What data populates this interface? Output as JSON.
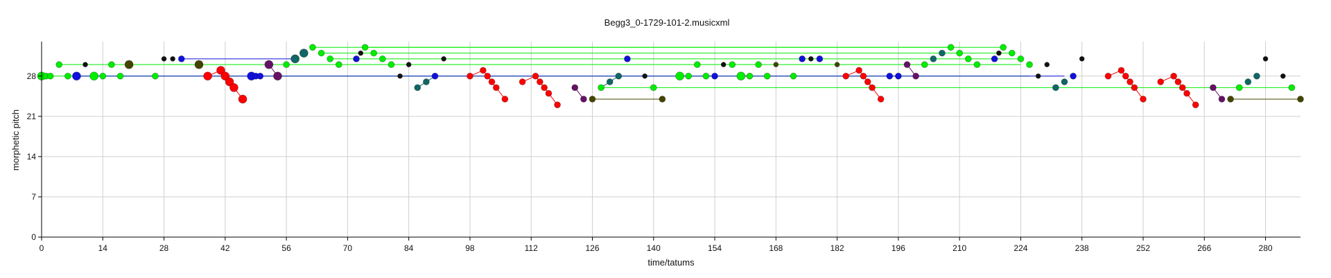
{
  "chart_data": {
    "type": "scatter",
    "title": "Begg3_0-1729-101-2.musicxml",
    "xlabel": "time/tatums",
    "ylabel": "morphetic pitch",
    "xlim": [
      0,
      288
    ],
    "ylim": [
      0,
      34
    ],
    "xticks": [
      0,
      14,
      28,
      42,
      56,
      70,
      84,
      98,
      112,
      126,
      140,
      154,
      168,
      182,
      196,
      210,
      224,
      238,
      252,
      266,
      280
    ],
    "yticks": [
      0,
      7,
      14,
      21,
      28
    ],
    "grid": true,
    "colors": {
      "red": "#ff0000",
      "green": "#00ee00",
      "blue": "#1010dd",
      "black": "#111111",
      "teal": "#116666",
      "purple": "#661166",
      "olive": "#444400"
    },
    "links": [
      {
        "color": "green",
        "points": [
          [
            0,
            28
          ],
          [
            14,
            28
          ],
          [
            26,
            28
          ],
          [
            40,
            28
          ],
          [
            56,
            28
          ],
          [
            72,
            28
          ],
          [
            96,
            28
          ],
          [
            146,
            28
          ],
          [
            160,
            28
          ],
          [
            172,
            28
          ],
          [
            196,
            28
          ],
          [
            226,
            28
          ]
        ]
      },
      {
        "color": "green",
        "points": [
          [
            4,
            30
          ],
          [
            36,
            30
          ],
          [
            100,
            30
          ],
          [
            160,
            30
          ],
          [
            224,
            30
          ]
        ]
      },
      {
        "color": "green",
        "points": [
          [
            62,
            33
          ],
          [
            208,
            33
          ]
        ]
      },
      {
        "color": "green",
        "points": [
          [
            74,
            33
          ],
          [
            220,
            33
          ]
        ]
      },
      {
        "color": "green",
        "points": [
          [
            64,
            32
          ],
          [
            210,
            32
          ],
          [
            222,
            32
          ]
        ]
      },
      {
        "color": "green",
        "points": [
          [
            66,
            31
          ],
          [
            212,
            31
          ],
          [
            224,
            31
          ]
        ]
      },
      {
        "color": "green",
        "points": [
          [
            128,
            26
          ],
          [
            286,
            26
          ]
        ]
      },
      {
        "color": "blue",
        "points": [
          [
            32,
            31
          ],
          [
            58,
            31
          ]
        ]
      },
      {
        "color": "blue",
        "points": [
          [
            8,
            28
          ],
          [
            50,
            28
          ],
          [
            174,
            28
          ],
          [
            234,
            28
          ]
        ]
      },
      {
        "color": "olive",
        "points": [
          [
            126,
            24
          ],
          [
            142,
            24
          ]
        ]
      },
      {
        "color": "olive",
        "points": [
          [
            272,
            24
          ],
          [
            288,
            24
          ]
        ]
      },
      {
        "color": "red",
        "points": [
          [
            38,
            28
          ],
          [
            41,
            29
          ],
          [
            42,
            28
          ],
          [
            43,
            27
          ],
          [
            44,
            26
          ],
          [
            46,
            24
          ]
        ]
      },
      {
        "color": "red",
        "points": [
          [
            98,
            28
          ],
          [
            101,
            29
          ],
          [
            102,
            28
          ],
          [
            103,
            27
          ],
          [
            104,
            26
          ],
          [
            106,
            24
          ]
        ]
      },
      {
        "color": "red",
        "points": [
          [
            110,
            27
          ],
          [
            113,
            28
          ],
          [
            114,
            27
          ],
          [
            115,
            26
          ],
          [
            116,
            25
          ],
          [
            118,
            23
          ]
        ]
      },
      {
        "color": "red",
        "points": [
          [
            184,
            28
          ],
          [
            187,
            29
          ],
          [
            188,
            28
          ],
          [
            189,
            27
          ],
          [
            190,
            26
          ],
          [
            192,
            24
          ]
        ]
      },
      {
        "color": "red",
        "points": [
          [
            244,
            28
          ],
          [
            247,
            29
          ],
          [
            248,
            28
          ],
          [
            249,
            27
          ],
          [
            250,
            26
          ],
          [
            252,
            24
          ]
        ]
      },
      {
        "color": "red",
        "points": [
          [
            256,
            27
          ],
          [
            259,
            28
          ],
          [
            260,
            27
          ],
          [
            261,
            26
          ],
          [
            262,
            25
          ],
          [
            264,
            23
          ]
        ]
      },
      {
        "color": "purple",
        "points": [
          [
            52,
            30
          ],
          [
            54,
            28
          ]
        ]
      },
      {
        "color": "purple",
        "points": [
          [
            122,
            26
          ],
          [
            124,
            24
          ]
        ]
      },
      {
        "color": "purple",
        "points": [
          [
            268,
            26
          ],
          [
            270,
            24
          ]
        ]
      },
      {
        "color": "purple",
        "points": [
          [
            198,
            30
          ],
          [
            200,
            28
          ]
        ]
      },
      {
        "color": "teal",
        "points": [
          [
            128,
            26
          ],
          [
            130,
            27
          ],
          [
            132,
            28
          ]
        ]
      },
      {
        "color": "teal",
        "points": [
          [
            86,
            26
          ],
          [
            88,
            27
          ],
          [
            90,
            28
          ]
        ]
      }
    ],
    "points": [
      {
        "x": 0,
        "y": 28,
        "c": "green",
        "s": "l"
      },
      {
        "x": 1,
        "y": 28,
        "c": "green",
        "s": "m"
      },
      {
        "x": 2,
        "y": 28,
        "c": "green",
        "s": "m"
      },
      {
        "x": 4,
        "y": 30,
        "c": "green",
        "s": "m"
      },
      {
        "x": 6,
        "y": 28,
        "c": "green",
        "s": "m"
      },
      {
        "x": 8,
        "y": 28,
        "c": "blue",
        "s": "l"
      },
      {
        "x": 10,
        "y": 30,
        "c": "black",
        "s": "s"
      },
      {
        "x": 12,
        "y": 28,
        "c": "green",
        "s": "l"
      },
      {
        "x": 14,
        "y": 28,
        "c": "green",
        "s": "m"
      },
      {
        "x": 16,
        "y": 30,
        "c": "green",
        "s": "m"
      },
      {
        "x": 18,
        "y": 28,
        "c": "green",
        "s": "m"
      },
      {
        "x": 20,
        "y": 30,
        "c": "olive",
        "s": "l"
      },
      {
        "x": 26,
        "y": 28,
        "c": "green",
        "s": "m"
      },
      {
        "x": 28,
        "y": 31,
        "c": "black",
        "s": "s"
      },
      {
        "x": 30,
        "y": 31,
        "c": "black",
        "s": "s"
      },
      {
        "x": 32,
        "y": 31,
        "c": "blue",
        "s": "m"
      },
      {
        "x": 36,
        "y": 30,
        "c": "olive",
        "s": "l"
      },
      {
        "x": 38,
        "y": 28,
        "c": "red",
        "s": "l"
      },
      {
        "x": 41,
        "y": 29,
        "c": "red",
        "s": "l"
      },
      {
        "x": 42,
        "y": 28,
        "c": "red",
        "s": "l"
      },
      {
        "x": 43,
        "y": 27,
        "c": "red",
        "s": "l"
      },
      {
        "x": 44,
        "y": 26,
        "c": "red",
        "s": "l"
      },
      {
        "x": 46,
        "y": 24,
        "c": "red",
        "s": "l"
      },
      {
        "x": 48,
        "y": 28,
        "c": "blue",
        "s": "l"
      },
      {
        "x": 49,
        "y": 28,
        "c": "blue",
        "s": "m"
      },
      {
        "x": 50,
        "y": 28,
        "c": "blue",
        "s": "m"
      },
      {
        "x": 52,
        "y": 30,
        "c": "purple",
        "s": "l"
      },
      {
        "x": 54,
        "y": 28,
        "c": "purple",
        "s": "l"
      },
      {
        "x": 56,
        "y": 30,
        "c": "green",
        "s": "m"
      },
      {
        "x": 58,
        "y": 31,
        "c": "teal",
        "s": "l"
      },
      {
        "x": 60,
        "y": 32,
        "c": "teal",
        "s": "l"
      },
      {
        "x": 62,
        "y": 33,
        "c": "green",
        "s": "m"
      },
      {
        "x": 64,
        "y": 32,
        "c": "green",
        "s": "m"
      },
      {
        "x": 66,
        "y": 31,
        "c": "green",
        "s": "m"
      },
      {
        "x": 68,
        "y": 30,
        "c": "green",
        "s": "m"
      },
      {
        "x": 72,
        "y": 31,
        "c": "blue",
        "s": "m"
      },
      {
        "x": 73,
        "y": 32,
        "c": "black",
        "s": "s"
      },
      {
        "x": 74,
        "y": 33,
        "c": "green",
        "s": "m"
      },
      {
        "x": 76,
        "y": 32,
        "c": "green",
        "s": "m"
      },
      {
        "x": 78,
        "y": 31,
        "c": "green",
        "s": "m"
      },
      {
        "x": 80,
        "y": 30,
        "c": "green",
        "s": "m"
      },
      {
        "x": 82,
        "y": 28,
        "c": "black",
        "s": "s"
      },
      {
        "x": 84,
        "y": 30,
        "c": "black",
        "s": "s"
      },
      {
        "x": 86,
        "y": 26,
        "c": "teal",
        "s": "m"
      },
      {
        "x": 88,
        "y": 27,
        "c": "teal",
        "s": "m"
      },
      {
        "x": 90,
        "y": 28,
        "c": "blue",
        "s": "m"
      },
      {
        "x": 92,
        "y": 31,
        "c": "black",
        "s": "s"
      },
      {
        "x": 98,
        "y": 28,
        "c": "red",
        "s": "m"
      },
      {
        "x": 101,
        "y": 29,
        "c": "red",
        "s": "m"
      },
      {
        "x": 102,
        "y": 28,
        "c": "red",
        "s": "m"
      },
      {
        "x": 103,
        "y": 27,
        "c": "red",
        "s": "m"
      },
      {
        "x": 104,
        "y": 26,
        "c": "red",
        "s": "m"
      },
      {
        "x": 106,
        "y": 24,
        "c": "red",
        "s": "m"
      },
      {
        "x": 110,
        "y": 27,
        "c": "red",
        "s": "m"
      },
      {
        "x": 113,
        "y": 28,
        "c": "red",
        "s": "m"
      },
      {
        "x": 114,
        "y": 27,
        "c": "red",
        "s": "m"
      },
      {
        "x": 115,
        "y": 26,
        "c": "red",
        "s": "m"
      },
      {
        "x": 116,
        "y": 25,
        "c": "red",
        "s": "m"
      },
      {
        "x": 118,
        "y": 23,
        "c": "red",
        "s": "m"
      },
      {
        "x": 122,
        "y": 26,
        "c": "purple",
        "s": "m"
      },
      {
        "x": 124,
        "y": 24,
        "c": "purple",
        "s": "m"
      },
      {
        "x": 126,
        "y": 24,
        "c": "olive",
        "s": "m"
      },
      {
        "x": 128,
        "y": 26,
        "c": "green",
        "s": "m"
      },
      {
        "x": 130,
        "y": 27,
        "c": "teal",
        "s": "m"
      },
      {
        "x": 132,
        "y": 28,
        "c": "teal",
        "s": "m"
      },
      {
        "x": 134,
        "y": 31,
        "c": "blue",
        "s": "m"
      },
      {
        "x": 138,
        "y": 28,
        "c": "black",
        "s": "s"
      },
      {
        "x": 140,
        "y": 26,
        "c": "green",
        "s": "m"
      },
      {
        "x": 142,
        "y": 24,
        "c": "olive",
        "s": "m"
      },
      {
        "x": 146,
        "y": 28,
        "c": "green",
        "s": "l"
      },
      {
        "x": 148,
        "y": 28,
        "c": "green",
        "s": "m"
      },
      {
        "x": 150,
        "y": 30,
        "c": "green",
        "s": "m"
      },
      {
        "x": 152,
        "y": 28,
        "c": "green",
        "s": "m"
      },
      {
        "x": 154,
        "y": 28,
        "c": "blue",
        "s": "m"
      },
      {
        "x": 156,
        "y": 30,
        "c": "black",
        "s": "s"
      },
      {
        "x": 158,
        "y": 30,
        "c": "green",
        "s": "m"
      },
      {
        "x": 160,
        "y": 28,
        "c": "green",
        "s": "l"
      },
      {
        "x": 162,
        "y": 28,
        "c": "green",
        "s": "m"
      },
      {
        "x": 164,
        "y": 30,
        "c": "green",
        "s": "m"
      },
      {
        "x": 166,
        "y": 28,
        "c": "green",
        "s": "m"
      },
      {
        "x": 168,
        "y": 30,
        "c": "olive",
        "s": "s"
      },
      {
        "x": 172,
        "y": 28,
        "c": "green",
        "s": "m"
      },
      {
        "x": 174,
        "y": 31,
        "c": "blue",
        "s": "m"
      },
      {
        "x": 176,
        "y": 31,
        "c": "black",
        "s": "s"
      },
      {
        "x": 178,
        "y": 31,
        "c": "blue",
        "s": "m"
      },
      {
        "x": 182,
        "y": 30,
        "c": "olive",
        "s": "s"
      },
      {
        "x": 184,
        "y": 28,
        "c": "red",
        "s": "m"
      },
      {
        "x": 187,
        "y": 29,
        "c": "red",
        "s": "m"
      },
      {
        "x": 188,
        "y": 28,
        "c": "red",
        "s": "m"
      },
      {
        "x": 189,
        "y": 27,
        "c": "red",
        "s": "m"
      },
      {
        "x": 190,
        "y": 26,
        "c": "red",
        "s": "m"
      },
      {
        "x": 192,
        "y": 24,
        "c": "red",
        "s": "m"
      },
      {
        "x": 194,
        "y": 28,
        "c": "blue",
        "s": "m"
      },
      {
        "x": 196,
        "y": 28,
        "c": "blue",
        "s": "m"
      },
      {
        "x": 198,
        "y": 30,
        "c": "purple",
        "s": "m"
      },
      {
        "x": 200,
        "y": 28,
        "c": "purple",
        "s": "m"
      },
      {
        "x": 202,
        "y": 30,
        "c": "green",
        "s": "m"
      },
      {
        "x": 204,
        "y": 31,
        "c": "teal",
        "s": "m"
      },
      {
        "x": 206,
        "y": 32,
        "c": "teal",
        "s": "m"
      },
      {
        "x": 208,
        "y": 33,
        "c": "green",
        "s": "m"
      },
      {
        "x": 210,
        "y": 32,
        "c": "green",
        "s": "m"
      },
      {
        "x": 212,
        "y": 31,
        "c": "green",
        "s": "m"
      },
      {
        "x": 214,
        "y": 30,
        "c": "green",
        "s": "m"
      },
      {
        "x": 218,
        "y": 31,
        "c": "blue",
        "s": "m"
      },
      {
        "x": 219,
        "y": 32,
        "c": "black",
        "s": "s"
      },
      {
        "x": 220,
        "y": 33,
        "c": "green",
        "s": "m"
      },
      {
        "x": 222,
        "y": 32,
        "c": "green",
        "s": "m"
      },
      {
        "x": 224,
        "y": 31,
        "c": "green",
        "s": "m"
      },
      {
        "x": 226,
        "y": 30,
        "c": "green",
        "s": "m"
      },
      {
        "x": 228,
        "y": 28,
        "c": "black",
        "s": "s"
      },
      {
        "x": 230,
        "y": 30,
        "c": "black",
        "s": "s"
      },
      {
        "x": 232,
        "y": 26,
        "c": "teal",
        "s": "m"
      },
      {
        "x": 234,
        "y": 27,
        "c": "teal",
        "s": "m"
      },
      {
        "x": 236,
        "y": 28,
        "c": "blue",
        "s": "m"
      },
      {
        "x": 238,
        "y": 31,
        "c": "black",
        "s": "s"
      },
      {
        "x": 244,
        "y": 28,
        "c": "red",
        "s": "m"
      },
      {
        "x": 247,
        "y": 29,
        "c": "red",
        "s": "m"
      },
      {
        "x": 248,
        "y": 28,
        "c": "red",
        "s": "m"
      },
      {
        "x": 249,
        "y": 27,
        "c": "red",
        "s": "m"
      },
      {
        "x": 250,
        "y": 26,
        "c": "red",
        "s": "m"
      },
      {
        "x": 252,
        "y": 24,
        "c": "red",
        "s": "m"
      },
      {
        "x": 256,
        "y": 27,
        "c": "red",
        "s": "m"
      },
      {
        "x": 259,
        "y": 28,
        "c": "red",
        "s": "m"
      },
      {
        "x": 260,
        "y": 27,
        "c": "red",
        "s": "m"
      },
      {
        "x": 261,
        "y": 26,
        "c": "red",
        "s": "m"
      },
      {
        "x": 262,
        "y": 25,
        "c": "red",
        "s": "m"
      },
      {
        "x": 264,
        "y": 23,
        "c": "red",
        "s": "m"
      },
      {
        "x": 268,
        "y": 26,
        "c": "purple",
        "s": "m"
      },
      {
        "x": 270,
        "y": 24,
        "c": "purple",
        "s": "m"
      },
      {
        "x": 272,
        "y": 24,
        "c": "olive",
        "s": "m"
      },
      {
        "x": 274,
        "y": 26,
        "c": "green",
        "s": "m"
      },
      {
        "x": 276,
        "y": 27,
        "c": "teal",
        "s": "m"
      },
      {
        "x": 278,
        "y": 28,
        "c": "teal",
        "s": "m"
      },
      {
        "x": 280,
        "y": 31,
        "c": "black",
        "s": "s"
      },
      {
        "x": 284,
        "y": 28,
        "c": "black",
        "s": "s"
      },
      {
        "x": 286,
        "y": 26,
        "c": "green",
        "s": "m"
      },
      {
        "x": 288,
        "y": 24,
        "c": "olive",
        "s": "m"
      }
    ]
  }
}
